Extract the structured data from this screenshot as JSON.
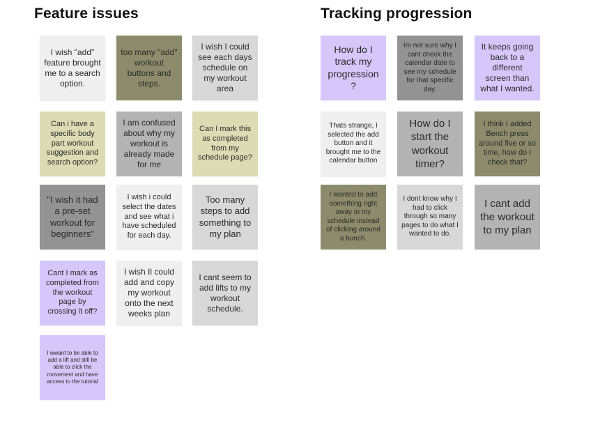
{
  "colors": {
    "light": "#efefef",
    "light_grey": "#d8d8d8",
    "grey": "#b3b3b3",
    "dark_grey": "#939393",
    "olive": "#8c8c6c",
    "khaki": "#dcdcb4",
    "purple": "#d6c7fa"
  },
  "feature_issues": {
    "title": "Feature issues",
    "notes": [
      "I wish \"add\" feature brought me to a search option.",
      "too many \"add\" workout buttons and steps.",
      "I wish I could see each days schedule on my workout area",
      "Can i have a specific body part workout suggestion and search option?",
      "I am confused about why my workout is already made for me",
      "Can I mark this as completed from my schedule page?",
      "\"I wish it had a pre-set workout for beginners\"",
      "I wish i could select the dates and see what i have scheduled for each day.",
      "Too many steps to add something to my plan",
      "Cant I mark as completed from the workout page by crossing it off?",
      "I wish Il could add and copy my workout onto the next weeks plan",
      "I cant seem to add lifts to my workout schedule.",
      "I wwant to be able to add a lift and still be able to click the movement and have access to the tutorial"
    ]
  },
  "tracking_progression": {
    "title": "Tracking progression",
    "notes": [
      "How do I track my progression ?",
      "Im not sure why I cant check the calendar date to see my schedule for that specific day.",
      "It keeps going back to a different screen than what I wanted.",
      "Thats strange, I selected the add button and it brought me to the calendar button",
      "How do I start the workout timer?",
      "I think I added Bench press around five or so time, how do I check that?",
      "I wanted to add something right away to my schedule instead of clicking around a bunch.",
      "I dont know why I had to click through so many pages to do what I wanted to do.",
      "I cant add the workout to my plan"
    ]
  }
}
